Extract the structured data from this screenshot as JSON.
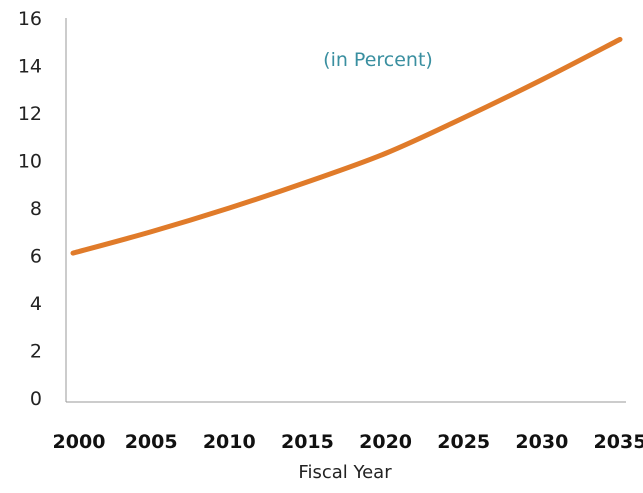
{
  "chart_data": {
    "type": "line",
    "title": "",
    "subtitle": "(in Percent)",
    "xlabel": "Fiscal Year",
    "ylabel": "",
    "x": [
      2000,
      2005,
      2010,
      2015,
      2020,
      2025,
      2030,
      2035
    ],
    "x_tick_labels": [
      "2000",
      "2005",
      "2010",
      "2015",
      "2020",
      "2025",
      "2030",
      "2035"
    ],
    "y_ticks": [
      0,
      2,
      4,
      6,
      8,
      10,
      12,
      14,
      16
    ],
    "y_tick_labels": [
      "0",
      "2",
      "4",
      "6",
      "8",
      "10",
      "12",
      "14",
      "16"
    ],
    "xlim": [
      2000,
      2035
    ],
    "ylim": [
      0,
      16
    ],
    "grid": false,
    "series": [
      {
        "name": "",
        "color": "#E07B2A",
        "values": [
          6.1,
          7.0,
          8.0,
          9.1,
          10.3,
          11.8,
          13.4,
          15.1
        ]
      }
    ],
    "colors": {
      "line": "#E07B2A",
      "subtitle": "#3A8FA0",
      "axis": "#999999"
    }
  }
}
